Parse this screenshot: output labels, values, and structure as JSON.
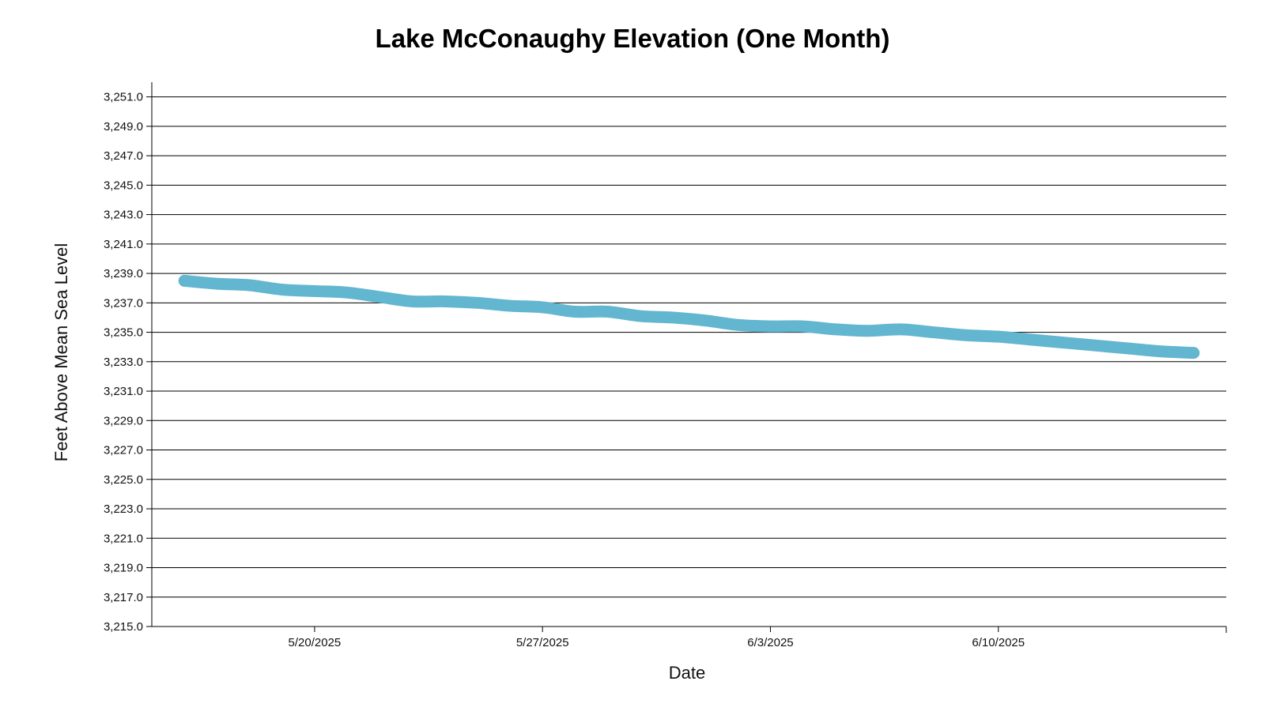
{
  "chart_data": {
    "type": "line",
    "title": "Lake McConaughy Elevation (One Month)",
    "xlabel": "Date",
    "ylabel": "Feet Above Mean Sea Level",
    "xlim": [
      "2025-05-15",
      "2025-06-17"
    ],
    "ylim": [
      3215.0,
      3252.0
    ],
    "yticks": [
      3215.0,
      3217.0,
      3219.0,
      3221.0,
      3223.0,
      3225.0,
      3227.0,
      3229.0,
      3231.0,
      3233.0,
      3235.0,
      3237.0,
      3239.0,
      3241.0,
      3243.0,
      3245.0,
      3247.0,
      3249.0,
      3251.0
    ],
    "ytick_labels": [
      "3,215.0",
      "3,217.0",
      "3,219.0",
      "3,221.0",
      "3,223.0",
      "3,225.0",
      "3,227.0",
      "3,229.0",
      "3,231.0",
      "3,233.0",
      "3,235.0",
      "3,237.0",
      "3,239.0",
      "3,241.0",
      "3,243.0",
      "3,245.0",
      "3,247.0",
      "3,249.0",
      "3,251.0"
    ],
    "xticks": [
      "2025-05-20",
      "2025-05-27",
      "2025-06-03",
      "2025-06-10"
    ],
    "xtick_labels": [
      "5/20/2025",
      "5/27/2025",
      "6/3/2025",
      "6/10/2025"
    ],
    "grid": "horizontal",
    "series": [
      {
        "color": "#62b6cf",
        "points": [
          {
            "x": "2025-05-16",
            "y": 3238.5
          },
          {
            "x": "2025-05-17",
            "y": 3238.3
          },
          {
            "x": "2025-05-18",
            "y": 3238.2
          },
          {
            "x": "2025-05-19",
            "y": 3237.9
          },
          {
            "x": "2025-05-20",
            "y": 3237.8
          },
          {
            "x": "2025-05-21",
            "y": 3237.7
          },
          {
            "x": "2025-05-22",
            "y": 3237.4
          },
          {
            "x": "2025-05-23",
            "y": 3237.1
          },
          {
            "x": "2025-05-24",
            "y": 3237.1
          },
          {
            "x": "2025-05-25",
            "y": 3237.0
          },
          {
            "x": "2025-05-26",
            "y": 3236.8
          },
          {
            "x": "2025-05-27",
            "y": 3236.7
          },
          {
            "x": "2025-05-28",
            "y": 3236.4
          },
          {
            "x": "2025-05-29",
            "y": 3236.4
          },
          {
            "x": "2025-05-30",
            "y": 3236.1
          },
          {
            "x": "2025-05-31",
            "y": 3236.0
          },
          {
            "x": "2025-06-01",
            "y": 3235.8
          },
          {
            "x": "2025-06-02",
            "y": 3235.5
          },
          {
            "x": "2025-06-03",
            "y": 3235.4
          },
          {
            "x": "2025-06-04",
            "y": 3235.4
          },
          {
            "x": "2025-06-05",
            "y": 3235.2
          },
          {
            "x": "2025-06-06",
            "y": 3235.1
          },
          {
            "x": "2025-06-07",
            "y": 3235.2
          },
          {
            "x": "2025-06-08",
            "y": 3235.0
          },
          {
            "x": "2025-06-09",
            "y": 3234.8
          },
          {
            "x": "2025-06-10",
            "y": 3234.7
          },
          {
            "x": "2025-06-11",
            "y": 3234.5
          },
          {
            "x": "2025-06-12",
            "y": 3234.3
          },
          {
            "x": "2025-06-13",
            "y": 3234.1
          },
          {
            "x": "2025-06-14",
            "y": 3233.9
          },
          {
            "x": "2025-06-15",
            "y": 3233.7
          },
          {
            "x": "2025-06-16",
            "y": 3233.6
          }
        ]
      }
    ]
  }
}
